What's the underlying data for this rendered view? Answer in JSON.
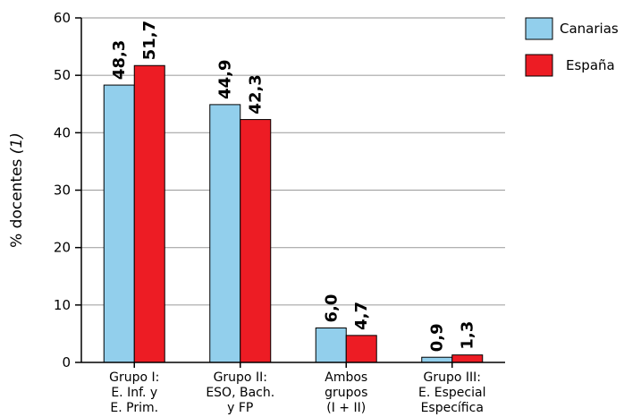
{
  "chart_data": {
    "type": "bar",
    "title": "",
    "ylabel_main": "% docentes ",
    "ylabel_note": "(1)",
    "xlabel": "",
    "ylim": [
      0,
      60
    ],
    "yticks": [
      0,
      10,
      20,
      30,
      40,
      50,
      60
    ],
    "grid": true,
    "legend_position": "top-right",
    "categories": [
      [
        "Grupo I:",
        "E. Inf. y",
        "E. Prim."
      ],
      [
        "Grupo II:",
        "ESO, Bach.",
        "y FP"
      ],
      [
        "Ambos",
        "grupos",
        "(I + II)"
      ],
      [
        "Grupo III:",
        "E. Especial",
        "Específica"
      ]
    ],
    "series": [
      {
        "name": "Canarias",
        "color": "#92cfec",
        "values": [
          48.3,
          44.9,
          6.0,
          0.9
        ],
        "labels": [
          "48,3",
          "44,9",
          "6,0",
          "0,9"
        ]
      },
      {
        "name": "España",
        "color": "#ed1c24",
        "values": [
          51.7,
          42.3,
          4.7,
          1.3
        ],
        "labels": [
          "51,7",
          "42,3",
          "4,7",
          "1,3"
        ]
      }
    ]
  }
}
